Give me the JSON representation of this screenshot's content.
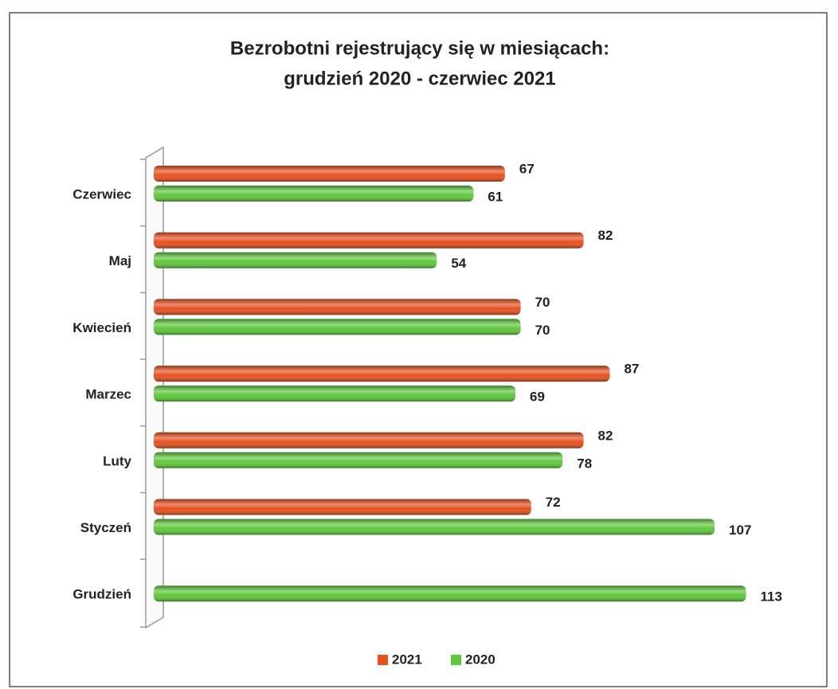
{
  "chart_data": {
    "type": "bar",
    "orientation": "horizontal",
    "title": [
      "Bezrobotni rejestrujący się w miesiącach:",
      "grudzień 2020 - czerwiec 2021"
    ],
    "categories": [
      "Czerwiec",
      "Maj",
      "Kwiecień",
      "Marzec",
      "Luty",
      "Styczeń",
      "Grudzień"
    ],
    "series": [
      {
        "name": "2021",
        "color": "#e8501e",
        "values": [
          67,
          82,
          70,
          87,
          82,
          72,
          null
        ]
      },
      {
        "name": "2020",
        "color": "#5fc83c",
        "values": [
          61,
          54,
          70,
          69,
          78,
          107,
          113
        ]
      }
    ],
    "legend": "bottom"
  }
}
